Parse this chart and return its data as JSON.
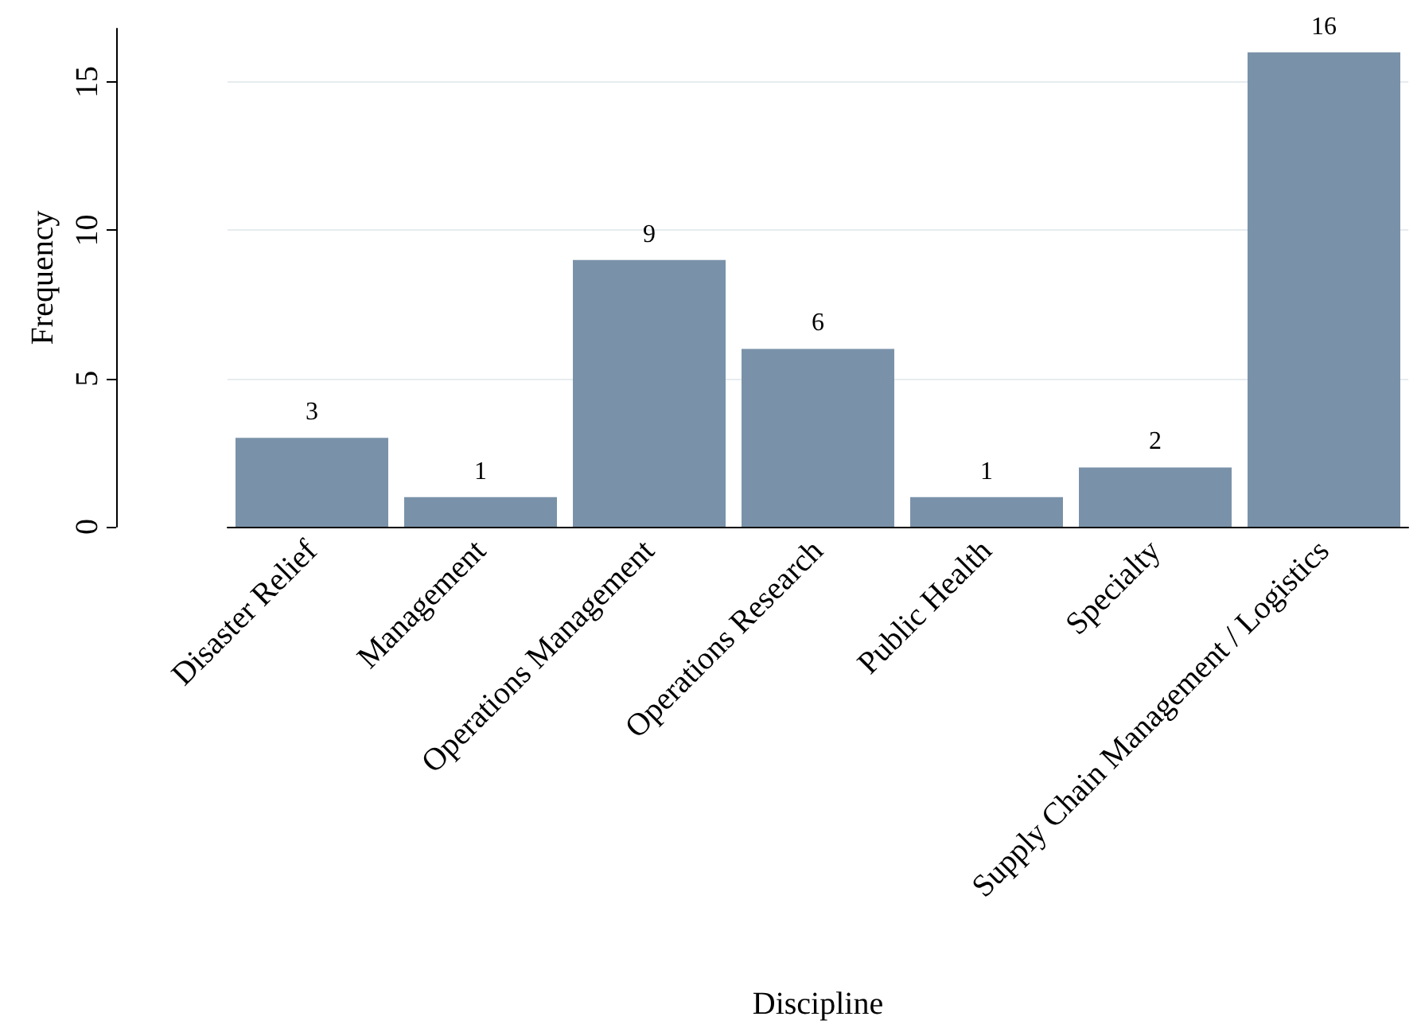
{
  "chart_data": {
    "type": "bar",
    "xlabel": "Discipline",
    "ylabel": "Frequency",
    "categories": [
      "Disaster Relief",
      "Management",
      "Operations Management",
      "Operations Research",
      "Public Health",
      "Specialty",
      "Supply Chain Management / Logistics"
    ],
    "values": [
      3,
      1,
      9,
      6,
      1,
      2,
      16
    ],
    "color": "#7a92a9",
    "ylim": [
      0,
      16.8
    ],
    "yticks": [
      0,
      5,
      10,
      15
    ],
    "grid": "y",
    "data_labels": true
  }
}
